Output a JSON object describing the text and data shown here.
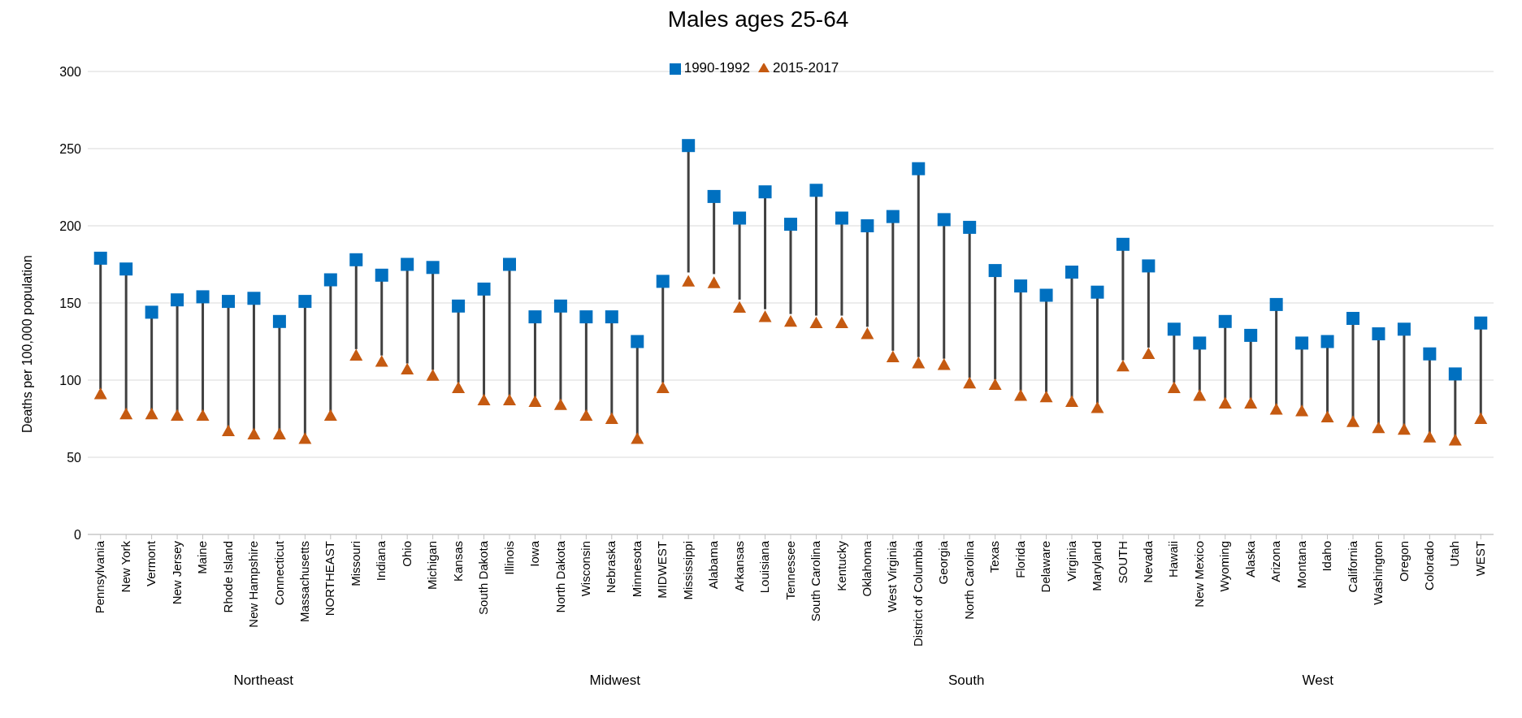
{
  "chart_data": {
    "type": "scatter",
    "title": "Males ages 25-64",
    "ylabel": "Deaths per 100,000 population",
    "categories": [
      "Pennsylvania",
      "New York",
      "Vermont",
      "New Jersey",
      "Maine",
      "Rhode Island",
      "New Hampshire",
      "Connecticut",
      "Massachusetts",
      "NORTHEAST",
      "Missouri",
      "Indiana",
      "Ohio",
      "Michigan",
      "Kansas",
      "South Dakota",
      "Illinois",
      "Iowa",
      "North Dakota",
      "Wisconsin",
      "Nebraska",
      "Minnesota",
      "MIDWEST",
      "Mississippi",
      "Alabama",
      "Arkansas",
      "Louisiana",
      "Tennessee",
      "South Carolina",
      "Kentucky",
      "Oklahoma",
      "West Virginia",
      "District of Columbia",
      "Georgia",
      "North Carolina",
      "Texas",
      "Florida",
      "Delaware",
      "Virginia",
      "Maryland",
      "SOUTH",
      "Nevada",
      "Hawaii",
      "New Mexico",
      "Wyoming",
      "Alaska",
      "Arizona",
      "Montana",
      "Idaho",
      "California",
      "Washington",
      "Oregon",
      "Colorado",
      "Utah",
      "WEST"
    ],
    "series": [
      {
        "name": "1990-1992",
        "color": "#0070c0",
        "marker": "square",
        "values": [
          179,
          172,
          144,
          152,
          154,
          151,
          153,
          138,
          151,
          165,
          178,
          168,
          175,
          173,
          148,
          159,
          175,
          141,
          148,
          141,
          141,
          125,
          164,
          252,
          219,
          205,
          222,
          201,
          223,
          205,
          200,
          206,
          237,
          204,
          199,
          171,
          161,
          155,
          170,
          157,
          188,
          174,
          133,
          124,
          138,
          129,
          149,
          124,
          125,
          140,
          130,
          133,
          117,
          104,
          137
        ]
      },
      {
        "name": "2015-2017",
        "color": "#c55a11",
        "marker": "triangle",
        "values": [
          91,
          78,
          78,
          77,
          77,
          67,
          65,
          65,
          62,
          77,
          116,
          112,
          107,
          103,
          95,
          87,
          87,
          86,
          84,
          77,
          75,
          62,
          95,
          164,
          163,
          147,
          141,
          138,
          137,
          137,
          130,
          115,
          111,
          110,
          98,
          97,
          90,
          89,
          86,
          82,
          109,
          117,
          95,
          90,
          85,
          85,
          81,
          80,
          76,
          73,
          69,
          68,
          63,
          61,
          75
        ]
      }
    ],
    "ylim": [
      0,
      300
    ],
    "yticks": [
      0,
      50,
      100,
      150,
      200,
      250,
      300
    ],
    "grid": "y",
    "legend": "top",
    "annotations": [
      "Northeast",
      "Midwest",
      "South",
      "West"
    ]
  }
}
